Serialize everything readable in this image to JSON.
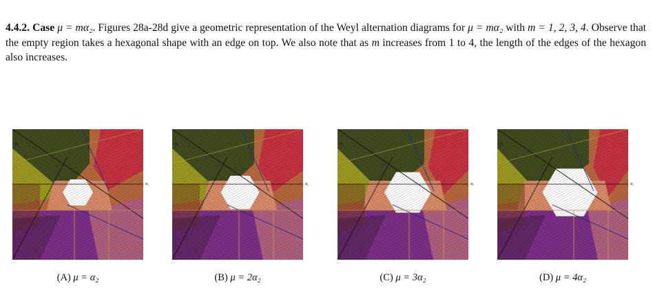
{
  "paragraph": [
    "4.4.2.",
    "Case",
    "μ = mα₂",
    ". Figures 28a-28d give a geometric representation of the Weyl alternation diagrams for ",
    "μ = mα₂",
    " with ",
    "m = 1, 2, 3, 4",
    ". Observe that the empty region takes a hexagonal shape with an edge on top. We also note that as ",
    "m",
    " increases from 1 to 4, the length of the edges of the hexagon also increases."
  ],
  "figures": [
    {
      "tag": "(A)",
      "caption": "μ = α₂",
      "axis_labels": [
        "α₁",
        "α₂"
      ]
    },
    {
      "tag": "(B)",
      "caption": "μ = 2α₂",
      "axis_labels": [
        "α₁",
        "α₂"
      ]
    },
    {
      "tag": "(C)",
      "caption": "μ = 3α₂",
      "axis_labels": [
        "α₁",
        "α₂"
      ]
    },
    {
      "tag": "(D)",
      "caption": "μ = 4α₂",
      "axis_labels": [
        "α₁",
        "α₂"
      ]
    }
  ]
}
